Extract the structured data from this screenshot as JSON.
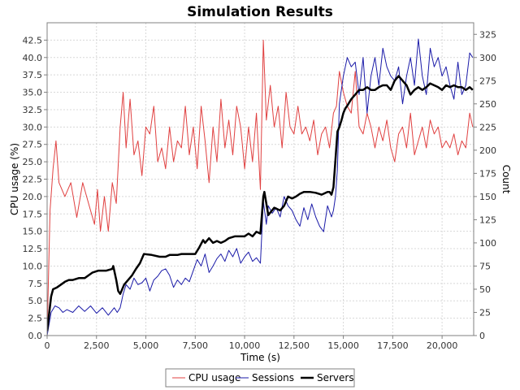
{
  "chart_data": {
    "type": "line",
    "title": "Simulation Results",
    "xlabel": "Time (s)",
    "ylabel_left": "CPU usage (%)",
    "ylabel_right": "Count",
    "xlim": [
      0,
      21600
    ],
    "ylim_left": [
      0,
      45
    ],
    "ylim_right": [
      0,
      337.5
    ],
    "x_ticks": [
      0,
      2500,
      5000,
      7500,
      10000,
      12500,
      15000,
      17500,
      20000
    ],
    "x_tick_labels": [
      "0",
      "2,500",
      "5,000",
      "7,500",
      "10,000",
      "12,500",
      "15,000",
      "17,500",
      "20,000"
    ],
    "y_left_ticks": [
      0,
      2.5,
      5,
      7.5,
      10,
      12.5,
      15,
      17.5,
      20,
      22.5,
      25,
      27.5,
      30,
      32.5,
      35,
      37.5,
      40,
      42.5
    ],
    "y_left_tick_labels": [
      "0.0",
      "2.5",
      "5.0",
      "7.5",
      "10.0",
      "12.5",
      "15.0",
      "17.5",
      "20.0",
      "22.5",
      "25.0",
      "27.5",
      "30.0",
      "32.5",
      "35.0",
      "37.5",
      "40.0",
      "42.5"
    ],
    "y_right_ticks": [
      0,
      25,
      50,
      75,
      100,
      125,
      150,
      175,
      200,
      225,
      250,
      275,
      300,
      325
    ],
    "y_right_tick_labels": [
      "0",
      "25",
      "50",
      "75",
      "100",
      "125",
      "150",
      "175",
      "200",
      "225",
      "250",
      "275",
      "300",
      "325"
    ],
    "grid": true,
    "legend_placement": "bottom-center",
    "series": [
      {
        "name": "CPU usage",
        "axis": "left",
        "color": "#e04040",
        "stroke": 1,
        "x": [
          0,
          150,
          300,
          450,
          600,
          900,
          1200,
          1500,
          1800,
          2100,
          2400,
          2550,
          2700,
          2900,
          3100,
          3300,
          3500,
          3700,
          3850,
          4000,
          4200,
          4400,
          4600,
          4800,
          5000,
          5200,
          5400,
          5600,
          5800,
          6000,
          6200,
          6400,
          6600,
          6800,
          7000,
          7200,
          7400,
          7600,
          7800,
          8000,
          8200,
          8400,
          8600,
          8800,
          9000,
          9200,
          9400,
          9600,
          9800,
          10000,
          10200,
          10400,
          10600,
          10800,
          10950,
          11100,
          11300,
          11500,
          11700,
          11900,
          12100,
          12300,
          12500,
          12700,
          12900,
          13100,
          13300,
          13500,
          13700,
          13900,
          14100,
          14300,
          14500,
          14650,
          14800,
          15000,
          15200,
          15400,
          15600,
          15800,
          16000,
          16200,
          16400,
          16600,
          16800,
          17000,
          17200,
          17400,
          17600,
          17800,
          18000,
          18200,
          18400,
          18600,
          18800,
          19000,
          19200,
          19400,
          19600,
          19800,
          20000,
          20200,
          20400,
          20600,
          20800,
          21000,
          21200,
          21400,
          21550
        ],
        "y": [
          0,
          18,
          24,
          28,
          22,
          20,
          22,
          17,
          22,
          19,
          16,
          21,
          15,
          20,
          15,
          22,
          19,
          30,
          35,
          27,
          34,
          26,
          28,
          23,
          30,
          29,
          33,
          25,
          27,
          24,
          30,
          25,
          28,
          27,
          33,
          26,
          30,
          24,
          33,
          28,
          22,
          30,
          25,
          34,
          27,
          31,
          26,
          33,
          30,
          24,
          30,
          25,
          32,
          21,
          42.5,
          31,
          36,
          30,
          33,
          27,
          35,
          30,
          29,
          33,
          29,
          30,
          28,
          31,
          26,
          29,
          30,
          27,
          32,
          33,
          38,
          35,
          33,
          32,
          38,
          30,
          29,
          32,
          30,
          27,
          30,
          28,
          31,
          27,
          25,
          29,
          30,
          27,
          32,
          26,
          28,
          30,
          27,
          31,
          29,
          30,
          27,
          28,
          27,
          29,
          26,
          28,
          27,
          32,
          30
        ]
      },
      {
        "name": "Sessions",
        "axis": "right",
        "color": "#1a1aa8",
        "stroke": 1,
        "x": [
          0,
          200,
          400,
          600,
          800,
          1000,
          1300,
          1600,
          1900,
          2200,
          2500,
          2800,
          3100,
          3400,
          3550,
          3700,
          3850,
          4000,
          4200,
          4400,
          4600,
          4800,
          5000,
          5200,
          5400,
          5600,
          5800,
          6000,
          6200,
          6400,
          6600,
          6800,
          7000,
          7200,
          7400,
          7600,
          7800,
          8000,
          8200,
          8400,
          8600,
          8800,
          9000,
          9200,
          9400,
          9600,
          9800,
          10000,
          10200,
          10400,
          10600,
          10800,
          10950,
          11100,
          11200,
          11400,
          11600,
          11800,
          12000,
          12200,
          12400,
          12600,
          12800,
          13000,
          13200,
          13400,
          13600,
          13800,
          14000,
          14200,
          14400,
          14500,
          14600,
          14700,
          14800,
          15000,
          15200,
          15400,
          15600,
          15800,
          16000,
          16200,
          16400,
          16600,
          16800,
          17000,
          17200,
          17400,
          17600,
          17800,
          18000,
          18200,
          18400,
          18600,
          18800,
          19000,
          19200,
          19400,
          19600,
          19800,
          20000,
          20200,
          20400,
          20600,
          20800,
          21000,
          21200,
          21400,
          21550
        ],
        "y": [
          0,
          25,
          32,
          30,
          25,
          28,
          25,
          32,
          26,
          32,
          24,
          30,
          22,
          30,
          25,
          30,
          45,
          55,
          50,
          62,
          55,
          57,
          62,
          48,
          60,
          64,
          70,
          72,
          65,
          52,
          60,
          55,
          62,
          58,
          70,
          82,
          75,
          88,
          68,
          75,
          83,
          88,
          80,
          92,
          85,
          94,
          78,
          85,
          90,
          80,
          84,
          78,
          145,
          120,
          140,
          132,
          138,
          128,
          150,
          140,
          135,
          125,
          118,
          138,
          125,
          142,
          128,
          118,
          112,
          140,
          128,
          135,
          150,
          180,
          250,
          280,
          300,
          290,
          295,
          260,
          300,
          240,
          280,
          300,
          270,
          310,
          290,
          280,
          275,
          290,
          250,
          280,
          300,
          270,
          320,
          280,
          260,
          310,
          290,
          300,
          280,
          290,
          270,
          255,
          295,
          260,
          270,
          305,
          300
        ]
      },
      {
        "name": "Servers",
        "axis": "right",
        "color": "#000000",
        "stroke": 2.5,
        "x": [
          0,
          200,
          300,
          500,
          700,
          900,
          1100,
          1300,
          1600,
          1900,
          2100,
          2300,
          2600,
          3000,
          3300,
          3350,
          3500,
          3600,
          3700,
          3800,
          3900,
          4100,
          4300,
          4500,
          4700,
          4900,
          5300,
          5700,
          6000,
          6200,
          6400,
          6600,
          6800,
          7000,
          7300,
          7500,
          7700,
          7900,
          8000,
          8200,
          8400,
          8600,
          8800,
          9000,
          9200,
          9500,
          9800,
          10000,
          10200,
          10400,
          10600,
          10800,
          10950,
          11000,
          11200,
          11500,
          11800,
          12000,
          12200,
          12400,
          12600,
          12800,
          13000,
          13300,
          13600,
          13900,
          14200,
          14300,
          14400,
          14500,
          14600,
          14700,
          14800,
          14900,
          15000,
          15100,
          15200,
          15400,
          15600,
          15800,
          16000,
          16200,
          16400,
          16600,
          16800,
          17000,
          17200,
          17400,
          17600,
          17800,
          18000,
          18200,
          18400,
          18600,
          18800,
          19000,
          19200,
          19400,
          19600,
          19800,
          20000,
          20200,
          20400,
          20600,
          20800,
          21000,
          21200,
          21400,
          21550
        ],
        "y": [
          5,
          42,
          50,
          52,
          55,
          58,
          60,
          60,
          62,
          62,
          65,
          68,
          70,
          70,
          72,
          75,
          60,
          48,
          45,
          50,
          55,
          60,
          65,
          72,
          78,
          88,
          87,
          85,
          85,
          87,
          87,
          87,
          88,
          88,
          88,
          88,
          95,
          103,
          100,
          105,
          100,
          102,
          100,
          102,
          105,
          107,
          107,
          107,
          110,
          107,
          112,
          110,
          150,
          155,
          130,
          138,
          135,
          140,
          150,
          148,
          150,
          153,
          155,
          155,
          154,
          152,
          155,
          155,
          152,
          160,
          190,
          220,
          225,
          232,
          240,
          245,
          248,
          255,
          260,
          265,
          265,
          268,
          265,
          265,
          268,
          270,
          270,
          265,
          275,
          280,
          275,
          270,
          260,
          265,
          268,
          265,
          268,
          272,
          270,
          268,
          265,
          270,
          268,
          270,
          268,
          268,
          265,
          268,
          265
        ]
      }
    ]
  }
}
